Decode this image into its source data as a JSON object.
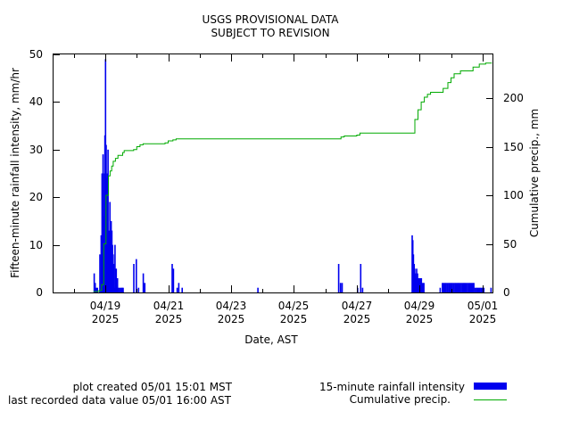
{
  "chart_data": {
    "type": "bar",
    "title": "USGS PROVISIONAL DATA",
    "subtitle": "SUBJECT TO REVISION",
    "xlabel": "Date, AST",
    "ylabel": "Fifteen-minute rainfall intensity, mm/hr",
    "y2label": "Cumulative precip., mm",
    "xlim": [
      -0.65,
      13.32
    ],
    "ylim": [
      0,
      50
    ],
    "y2lim": [
      0,
      245
    ],
    "yticks": [
      0,
      10,
      20,
      30,
      40,
      50
    ],
    "y2ticks": [
      0,
      50,
      100,
      150,
      200
    ],
    "xticks": [
      {
        "x": 1,
        "label": "04/19",
        "year": "2025"
      },
      {
        "x": 3,
        "label": "04/21",
        "year": "2025"
      },
      {
        "x": 5,
        "label": "04/23",
        "year": "2025"
      },
      {
        "x": 7,
        "label": "04/25",
        "year": "2025"
      },
      {
        "x": 9,
        "label": "04/27",
        "year": "2025"
      },
      {
        "x": 11,
        "label": "04/29",
        "year": "2025"
      },
      {
        "x": 13,
        "label": "05/01",
        "year": "2025"
      }
    ],
    "x_units_note": "days since 04/18 00:00 AST",
    "series": [
      {
        "name": "15-minute rainfall intensity",
        "kind": "bar",
        "color": "#0000ee",
        "x": [
          0.64,
          0.67,
          0.7,
          0.74,
          0.82,
          0.86,
          0.89,
          0.92,
          0.94,
          0.96,
          0.98,
          1.0,
          1.02,
          1.04,
          1.06,
          1.08,
          1.1,
          1.12,
          1.14,
          1.16,
          1.18,
          1.2,
          1.22,
          1.24,
          1.26,
          1.28,
          1.3,
          1.34,
          1.38,
          1.42,
          1.46,
          1.5,
          1.53,
          1.56,
          1.9,
          1.98,
          2.05,
          2.2,
          2.25,
          3.12,
          3.16,
          3.28,
          3.33,
          3.44,
          5.85,
          8.42,
          8.48,
          8.53,
          9.02,
          9.12,
          9.18,
          10.76,
          10.78,
          10.8,
          10.82,
          10.84,
          10.86,
          10.88,
          10.9,
          10.93,
          10.96,
          10.99,
          11.02,
          11.05,
          11.09,
          11.13,
          11.65,
          11.72,
          11.76,
          11.8,
          11.84,
          11.88,
          11.92,
          11.96,
          12.0,
          12.04,
          12.08,
          12.12,
          12.16,
          12.2,
          12.24,
          12.28,
          12.32,
          12.36,
          12.4,
          12.44,
          12.48,
          12.52,
          12.56,
          12.6,
          12.64,
          12.68,
          12.72,
          12.76,
          12.8,
          12.84,
          12.88,
          12.92,
          12.96,
          13.0,
          13.04,
          13.27
        ],
        "values": [
          4,
          2,
          1,
          1,
          8,
          12,
          25,
          29,
          16,
          25,
          33,
          49,
          31,
          24,
          25,
          30,
          13,
          12,
          19,
          8,
          15,
          13,
          10,
          8,
          6,
          1,
          10,
          5,
          3,
          1,
          1,
          1,
          1,
          1,
          6,
          7,
          1,
          4,
          2,
          6,
          5,
          1,
          2,
          1,
          1,
          6,
          2,
          2,
          1,
          6,
          1,
          12,
          11,
          8,
          6,
          5,
          4,
          3,
          5,
          4,
          3,
          3,
          3,
          3,
          2,
          2,
          1,
          2,
          2,
          2,
          2,
          2,
          2,
          2,
          2,
          2,
          2,
          2,
          2,
          2,
          2,
          2,
          2,
          2,
          2,
          2,
          2,
          2,
          2,
          2,
          2,
          2,
          2,
          1,
          1,
          1,
          1,
          1,
          1,
          1,
          1,
          1
        ]
      },
      {
        "name": "Cumulative precip.",
        "kind": "line",
        "axis": "y2",
        "color": "#00aa00",
        "x": [
          0.62,
          0.8,
          0.88,
          0.95,
          1.02,
          1.1,
          1.15,
          1.2,
          1.25,
          1.32,
          1.4,
          1.55,
          1.6,
          1.9,
          2.0,
          2.1,
          2.2,
          2.9,
          3.0,
          3.15,
          3.25,
          8.4,
          8.5,
          8.6,
          9.0,
          9.1,
          10.8,
          10.85,
          10.95,
          11.05,
          11.15,
          11.25,
          11.35,
          11.6,
          11.75,
          11.9,
          12.0,
          12.1,
          12.3,
          12.45,
          12.7,
          12.9,
          13.1,
          13.3
        ],
        "values": [
          1,
          2,
          8,
          50,
          100,
          120,
          125,
          130,
          135,
          138,
          141,
          144,
          146,
          147,
          150,
          152,
          153,
          154,
          156,
          157,
          158,
          158,
          160,
          161,
          162,
          164,
          164,
          178,
          188,
          196,
          201,
          204,
          206,
          206,
          210,
          216,
          221,
          225,
          228,
          228,
          232,
          235,
          236,
          236
        ]
      }
    ],
    "legend_position": "bottom-right"
  },
  "footer": {
    "plot_created": "plot created 05/01 15:01 MST",
    "last_value": "last recorded data value 05/01 16:00 AST"
  }
}
